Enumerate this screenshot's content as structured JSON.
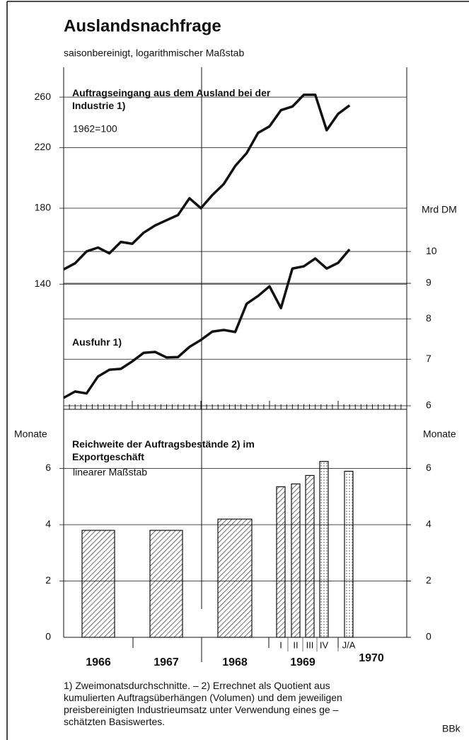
{
  "chart_data": [
    {
      "type": "line",
      "title": "Auslandsnachfrage",
      "subtitle": "saisonbereinigt, logarithmischer Maßstab",
      "annotation": "1962=100",
      "log_scale": true,
      "grid": true,
      "categories": [
        null,
        null,
        null,
        null,
        null,
        null,
        null,
        null,
        null,
        null,
        null,
        null,
        null,
        null,
        null,
        null,
        null,
        null,
        null,
        null,
        null,
        null,
        null,
        null,
        null,
        null
      ],
      "series": [
        {
          "name": "Auftragseingang aus dem Ausland bei der Industrie 1)",
          "color": "#111111",
          "values": [
            147,
            150,
            156,
            158,
            155,
            161,
            160,
            166,
            170,
            173,
            176,
            186,
            180,
            188,
            195,
            207,
            216,
            231,
            236,
            249,
            252,
            262,
            262,
            233,
            246,
            253
          ]
        },
        {
          "name": "Ausfuhr 1)",
          "color": "#111111",
          "axis": "y2",
          "values": [
            6.16,
            6.29,
            6.25,
            6.61,
            6.76,
            6.78,
            6.95,
            7.15,
            7.17,
            7.04,
            7.05,
            7.29,
            7.46,
            7.67,
            7.71,
            7.66,
            8.41,
            8.63,
            8.91,
            8.29,
            9.45,
            9.52,
            9.77,
            9.45,
            9.63,
            10.07
          ]
        }
      ],
      "ylim": [
        92.5,
        287
      ],
      "yticks": [
        140,
        180,
        220,
        260
      ],
      "y2label": "Mrd DM",
      "y2lim": [
        5.93,
        18.4
      ],
      "y2ticks": [
        6,
        7,
        8,
        9,
        10
      ]
    },
    {
      "type": "bar",
      "title": "Reichweite der Auftragsbestände 2) im Exportgeschäft",
      "subtitle": "linearer Maßstab",
      "ylabel": "Monate",
      "y2label": "Monate",
      "categories": [
        "1966",
        "1967",
        "1968",
        "I",
        "II",
        "III",
        "IV",
        "J/A"
      ],
      "group_labels": [
        "1969",
        "1970"
      ],
      "values": [
        3.8,
        3.8,
        4.2,
        5.35,
        5.45,
        5.75,
        6.25,
        5.9
      ],
      "estimated": [
        false,
        false,
        false,
        false,
        false,
        false,
        true,
        true
      ],
      "color": "#111111",
      "ylim": [
        0,
        8
      ],
      "yticks": [
        0,
        2,
        4,
        6
      ],
      "y2ticks": [
        0,
        2,
        4,
        6
      ],
      "grid": true
    }
  ],
  "footnote": [
    "1) Zweimonatsdurchschnitte. – 2) Errechnet als Quotient aus",
    "kumulierten Auftragsüberhängen (Volumen) und dem jeweiligen",
    "preisbereinigten Industrieumsatz unter Verwendung eines ge –",
    "schätzten Basiswertes."
  ],
  "source": "BBk"
}
